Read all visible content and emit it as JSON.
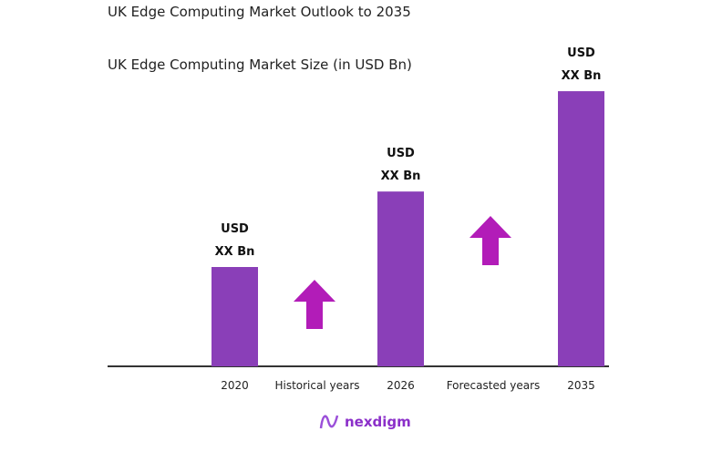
{
  "header": {
    "title": "UK Edge Computing Market Outlook to 2035"
  },
  "chart_data": {
    "type": "bar",
    "title": "UK Edge Computing Market Size (in USD Bn)",
    "categories": [
      "2020",
      "2026",
      "2035"
    ],
    "values": [
      1.0,
      1.76,
      2.77
    ],
    "data_labels": [
      [
        "USD",
        "XX Bn"
      ],
      [
        "USD",
        "XX Bn"
      ],
      [
        "USD",
        "XX Bn"
      ]
    ],
    "period_labels": [
      "Historical years",
      "Forecasted years"
    ],
    "bar_color": "#8a3fb8",
    "arrow_color": "#b21cb8",
    "grid": false
  },
  "brand": {
    "name": "nexdigm",
    "color": "#8b2fc9"
  }
}
